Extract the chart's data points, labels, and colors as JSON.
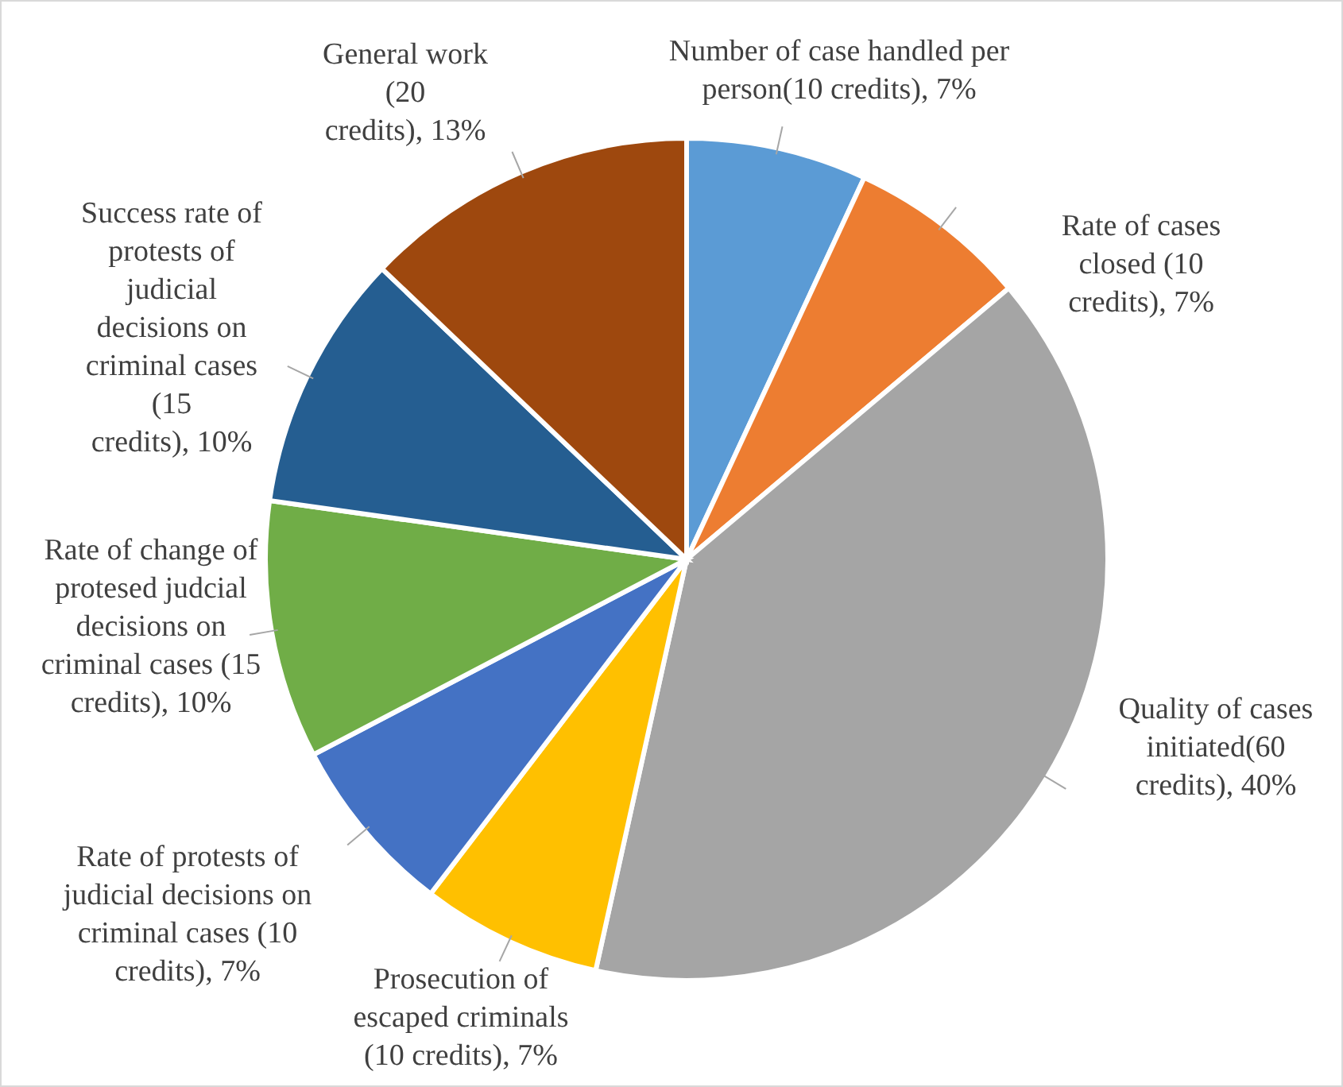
{
  "chart_data": {
    "type": "pie",
    "categories": [
      "Number of case handled per person(10 credits)",
      "Rate of cases closed (10 credits)",
      "Quality of cases initiated(60 credits)",
      "Prosecution of escaped criminals (10 credits)",
      "Rate of protests of judicial decisions on criminal cases (10 credits)",
      "Rate of change of protesed judcial decisions on criminal cases (15 credits)",
      "Success rate of protests of judicial decisions on criminal cases (15 credits)",
      "General work (20 credits)"
    ],
    "values": [
      7,
      7,
      40,
      7,
      7,
      10,
      10,
      13
    ],
    "value_labels": [
      "7%",
      "7%",
      "40%",
      "7%",
      "7%",
      "10%",
      "10%",
      "13%"
    ],
    "colors": [
      "#5b9bd5",
      "#ed7d31",
      "#a5a5a5",
      "#ffc000",
      "#4472c4",
      "#70ad47",
      "#255e91",
      "#9e480e"
    ],
    "data_labels": true
  }
}
